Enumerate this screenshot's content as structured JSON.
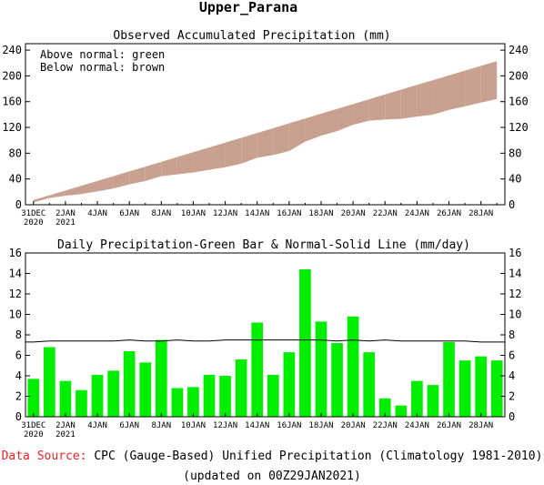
{
  "title": "Upper_Parana",
  "footer": {
    "source_label": "Data Source:",
    "source_text": " CPC (Gauge-Based) Unified Precipitation (Climatology 1981-2010)",
    "updated": "(updated on 00Z29JAN2021)"
  },
  "chart_data": [
    {
      "type": "area",
      "title": "Observed Accumulated Precipitation (mm)",
      "annotations": [
        "Above normal: green",
        "Below normal: brown"
      ],
      "ylim": [
        0,
        250
      ],
      "yticks": [
        0,
        40,
        80,
        120,
        160,
        200,
        240
      ],
      "x": [
        "31DEC2020",
        "1JAN",
        "2JAN",
        "3JAN",
        "4JAN",
        "5JAN",
        "6JAN",
        "7JAN",
        "8JAN",
        "9JAN",
        "10JAN",
        "11JAN",
        "12JAN",
        "13JAN",
        "14JAN",
        "15JAN",
        "16JAN",
        "17JAN",
        "18JAN",
        "19JAN",
        "20JAN",
        "21JAN",
        "22JAN",
        "23JAN",
        "24JAN",
        "25JAN",
        "26JAN",
        "27JAN",
        "28JAN",
        "29JAN"
      ],
      "xtick_labels": [
        {
          "i": 0,
          "line1": "31DEC",
          "line2": "2020"
        },
        {
          "i": 2,
          "line1": "2JAN",
          "line2": "2021"
        },
        {
          "i": 4,
          "line1": "4JAN",
          "line2": ""
        },
        {
          "i": 6,
          "line1": "6JAN",
          "line2": ""
        },
        {
          "i": 8,
          "line1": "8JAN",
          "line2": ""
        },
        {
          "i": 10,
          "line1": "10JAN",
          "line2": ""
        },
        {
          "i": 12,
          "line1": "12JAN",
          "line2": ""
        },
        {
          "i": 14,
          "line1": "14JAN",
          "line2": ""
        },
        {
          "i": 16,
          "line1": "16JAN",
          "line2": ""
        },
        {
          "i": 18,
          "line1": "18JAN",
          "line2": ""
        },
        {
          "i": 20,
          "line1": "20JAN",
          "line2": ""
        },
        {
          "i": 22,
          "line1": "22JAN",
          "line2": ""
        },
        {
          "i": 24,
          "line1": "24JAN",
          "line2": ""
        },
        {
          "i": 26,
          "line1": "26JAN",
          "line2": ""
        },
        {
          "i": 28,
          "line1": "28JAN",
          "line2": ""
        }
      ],
      "series": [
        {
          "values": [
            3.7,
            10.5,
            14.0,
            16.6,
            20.7,
            25.2,
            31.6,
            36.9,
            44.4,
            47.2,
            50.1,
            54.2,
            58.2,
            63.8,
            73.0,
            77.1,
            83.4,
            97.8,
            107.1,
            114.3,
            124.1,
            130.4,
            132.2,
            133.3,
            136.8,
            139.9,
            147.2,
            152.7,
            158.6,
            164.1
          ]
        },
        {
          "values": [
            7.3,
            14.7,
            22.1,
            29.5,
            36.9,
            44.3,
            51.8,
            59.2,
            66.6,
            74.1,
            81.5,
            88.9,
            96.4,
            103.9,
            111.4,
            118.9,
            126.4,
            133.9,
            141.4,
            148.8,
            156.3,
            163.7,
            171.2,
            178.6,
            186.0,
            193.4,
            200.8,
            208.2,
            215.5,
            222.8
          ]
        }
      ],
      "colors": {
        "below": "#c8a08f",
        "above": "#00ee00"
      }
    },
    {
      "type": "bar",
      "title": "Daily Precipitation-Green Bar & Normal-Solid Line (mm/day)",
      "ylim": [
        0,
        16
      ],
      "yticks": [
        0,
        2,
        4,
        6,
        8,
        10,
        12,
        14,
        16
      ],
      "categories": [
        "31DEC2020",
        "1JAN",
        "2JAN",
        "3JAN",
        "4JAN",
        "5JAN",
        "6JAN",
        "7JAN",
        "8JAN",
        "9JAN",
        "10JAN",
        "11JAN",
        "12JAN",
        "13JAN",
        "14JAN",
        "15JAN",
        "16JAN",
        "17JAN",
        "18JAN",
        "19JAN",
        "20JAN",
        "21JAN",
        "22JAN",
        "23JAN",
        "24JAN",
        "25JAN",
        "26JAN",
        "27JAN",
        "28JAN",
        "29JAN"
      ],
      "series": [
        {
          "values": [
            3.7,
            6.8,
            3.5,
            2.6,
            4.1,
            4.5,
            6.4,
            5.3,
            7.5,
            2.8,
            2.9,
            4.1,
            4.0,
            5.6,
            9.2,
            4.1,
            6.3,
            14.4,
            9.3,
            7.2,
            9.8,
            6.3,
            1.8,
            1.1,
            3.5,
            3.1,
            7.3,
            5.5,
            5.9,
            5.5
          ]
        },
        {
          "values": [
            7.3,
            7.4,
            7.4,
            7.4,
            7.4,
            7.4,
            7.5,
            7.4,
            7.4,
            7.5,
            7.4,
            7.4,
            7.5,
            7.5,
            7.5,
            7.5,
            7.5,
            7.5,
            7.5,
            7.4,
            7.5,
            7.4,
            7.5,
            7.4,
            7.4,
            7.4,
            7.4,
            7.4,
            7.3,
            7.3
          ]
        }
      ],
      "colors": {
        "bar": "#00ee00",
        "normal": "#000000"
      }
    }
  ]
}
